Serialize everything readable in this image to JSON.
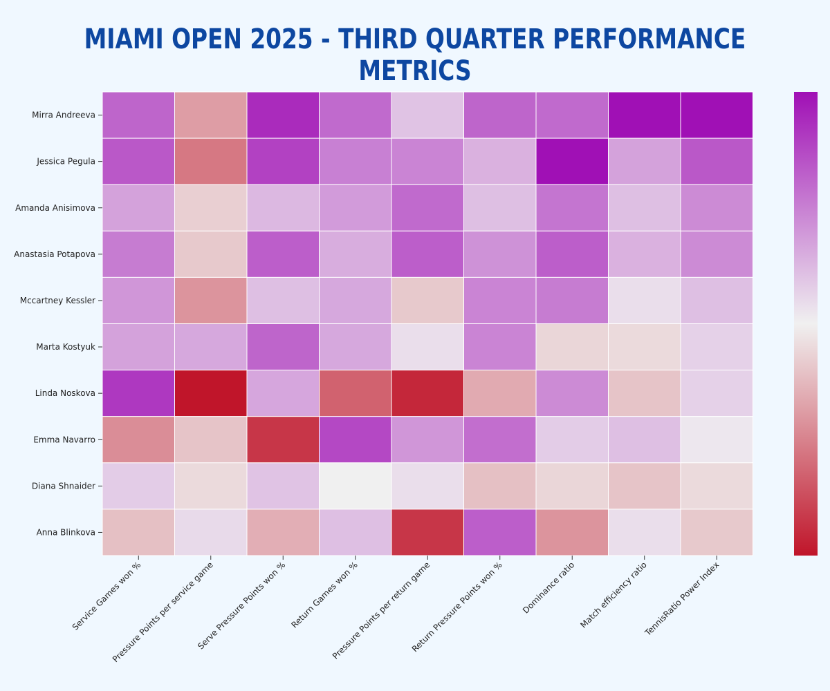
{
  "chart_data": {
    "type": "heatmap",
    "title": "MIAMI OPEN 2025 - THIRD QUARTER PERFORMANCE METRICS",
    "rows": [
      "Mirra Andreeva",
      "Jessica Pegula",
      "Amanda Anisimova",
      "Anastasia Potapova",
      "Mccartney Kessler",
      "Marta Kostyuk",
      "Linda Noskova",
      "Emma Navarro",
      "Diana Shnaider",
      "Anna Blinkova"
    ],
    "columns": [
      "Service Games won %",
      "Pressure Points per service game",
      "Serve Pressure Points won %",
      "Return Games won %",
      "Pressure Points per return game",
      "Return Pressure Points won %",
      "Dominance ratio",
      "Match efficiency ratio",
      "TennisRatio Power Index"
    ],
    "values": [
      [
        0.62,
        -0.38,
        0.88,
        0.6,
        0.2,
        0.62,
        0.6,
        1.0,
        1.0
      ],
      [
        0.68,
        -0.55,
        0.78,
        0.5,
        0.48,
        0.28,
        1.0,
        0.35,
        0.68
      ],
      [
        0.35,
        -0.15,
        0.25,
        0.38,
        0.6,
        0.22,
        0.55,
        0.22,
        0.45
      ],
      [
        0.52,
        -0.18,
        0.65,
        0.3,
        0.65,
        0.42,
        0.65,
        0.28,
        0.45
      ],
      [
        0.4,
        -0.42,
        0.22,
        0.32,
        -0.18,
        0.48,
        0.52,
        0.08,
        0.22
      ],
      [
        0.35,
        0.32,
        0.62,
        0.32,
        0.08,
        0.48,
        -0.12,
        -0.1,
        0.14
      ],
      [
        0.82,
        -1.0,
        0.33,
        -0.65,
        -0.92,
        -0.32,
        0.45,
        -0.2,
        0.14
      ],
      [
        -0.45,
        -0.2,
        -0.85,
        0.75,
        0.4,
        0.58,
        0.16,
        0.22,
        0.04
      ],
      [
        0.16,
        -0.1,
        0.2,
        0.0,
        0.08,
        -0.22,
        -0.12,
        -0.2,
        -0.1
      ],
      [
        -0.22,
        0.1,
        -0.3,
        0.22,
        -0.85,
        0.65,
        -0.42,
        0.08,
        -0.18
      ]
    ],
    "vmin": -1,
    "vmax": 1,
    "colormap": {
      "low": "#c0152a",
      "mid": "#f0f0f0",
      "high": "#a010b5"
    },
    "colorbar": true,
    "xlabel": "",
    "ylabel": ""
  }
}
